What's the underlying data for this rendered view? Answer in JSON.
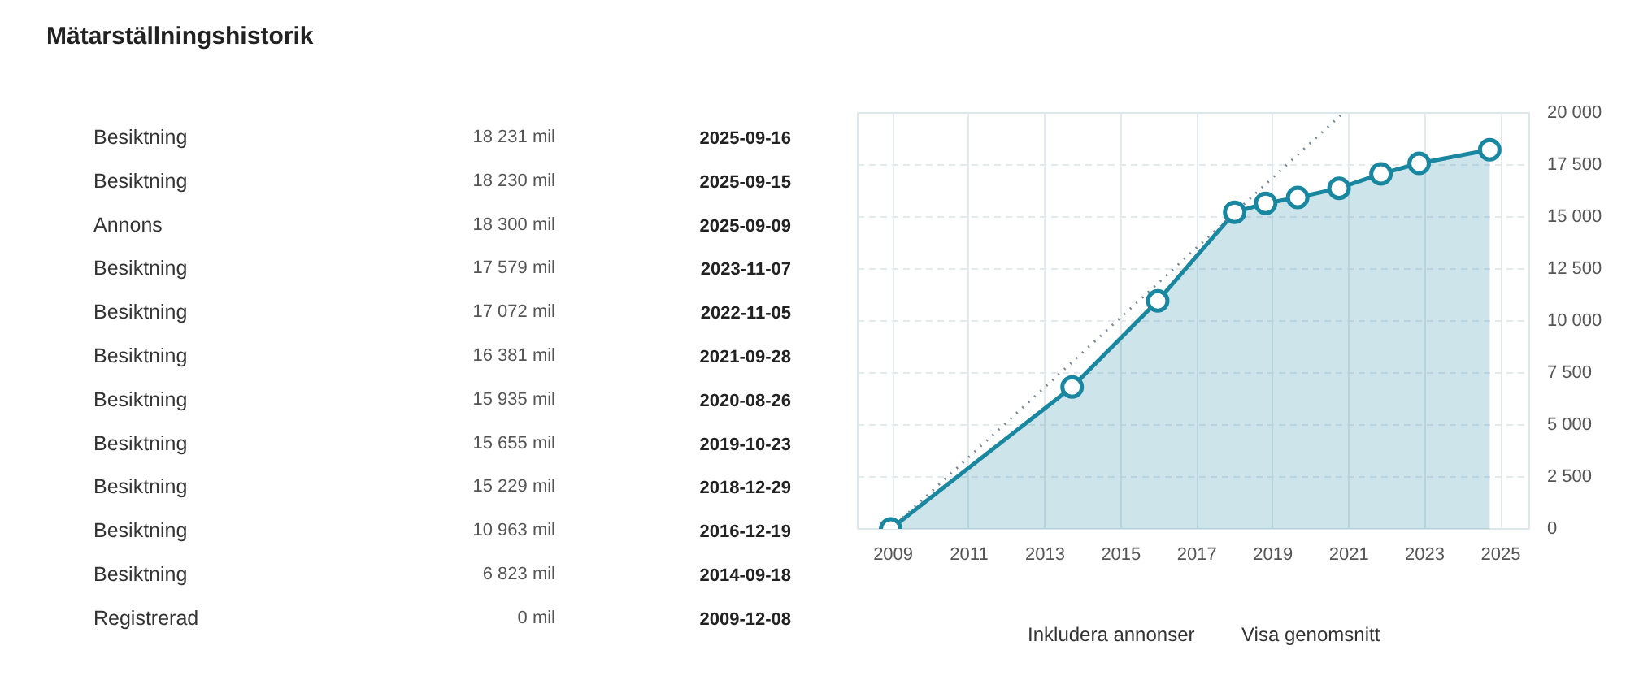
{
  "chart_data": [
    {
      "type": "other",
      "title": "Mätarställningshistorik",
      "annotations": [
        "Besiktning",
        "18 231 mil",
        "2025-09-16",
        "Besiktning",
        "18 230 mil",
        "2025-09-15",
        "Annons",
        "18 300 mil",
        "2025-09-09",
        "Besiktning",
        "17 579 mil",
        "2023-11-07",
        "Besiktning",
        "17 072 mil",
        "2022-11-05",
        "Besiktning",
        "16 381 mil",
        "2021-09-28",
        "Besiktning",
        "15 935 mil",
        "2020-08-26",
        "Besiktning",
        "15 655 mil",
        "2019-10-23",
        "Besiktning",
        "15 229 mil",
        "2018-12-29",
        "Besiktning",
        "10 963 mil",
        "2016-12-19",
        "Besiktning",
        "6 823 mil",
        "2014-09-18",
        "Registrerad",
        "0 mil",
        "2009-12-08"
      ]
    },
    {
      "type": "line",
      "x": [
        "2009-12-08",
        "2014-09-18",
        "2016-12-19",
        "2018-12-29",
        "2019-10-23",
        "2020-08-26",
        "2021-09-28",
        "2022-11-05",
        "2023-11-07",
        "2025-09-16"
      ],
      "series": [
        {
          "type": "area",
          "color": "#1a87a0",
          "values": [
            0,
            6823,
            10963,
            15229,
            15655,
            15935,
            16381,
            17072,
            17579,
            18231
          ]
        },
        {
          "type": "line",
          "color": "#7a8a96",
          "line_style": "dotted",
          "marker": "none",
          "x": [
            "2009-12-08",
            "2021-11-06"
          ],
          "values": [
            0,
            20000
          ]
        }
      ],
      "marker": "circle",
      "xlim": [
        "2009-01-25",
        "2026-10-01"
      ],
      "xticks": [
        {
          "value": "2009-12-31T23:00",
          "label": "2009"
        },
        {
          "value": "2011-12-31T23:00",
          "label": "2011"
        },
        {
          "value": "2013-12-31T23:00",
          "label": "2013"
        },
        {
          "value": "2015-12-31T23:00",
          "label": "2015"
        },
        {
          "value": "2017-12-31T23:00",
          "label": "2017"
        },
        {
          "value": "2019-12-31T23:00",
          "label": "2019"
        },
        {
          "value": "2021-12-31T23:00",
          "label": "2021"
        },
        {
          "value": "2023-12-31T23:00",
          "label": "2023"
        },
        {
          "value": "2025-12-31T23:00",
          "label": "2025"
        }
      ],
      "ylim": [
        0,
        20000
      ],
      "yticks": [
        0,
        {
          "value": 2500,
          "label": "2 500"
        },
        {
          "value": 5000,
          "label": "5 000"
        },
        {
          "value": 7500,
          "label": "7 500"
        },
        {
          "value": 10000,
          "label": "10 000"
        },
        {
          "value": 12500,
          "label": "12 500"
        },
        {
          "value": 15000,
          "label": "15 000"
        },
        {
          "value": 17500,
          "label": "17 500"
        },
        {
          "value": 20000,
          "label": "20 000"
        }
      ],
      "grid": true,
      "annotations": [
        "Inkludera annonser",
        "Visa genomsnitt"
      ]
    }
  ]
}
